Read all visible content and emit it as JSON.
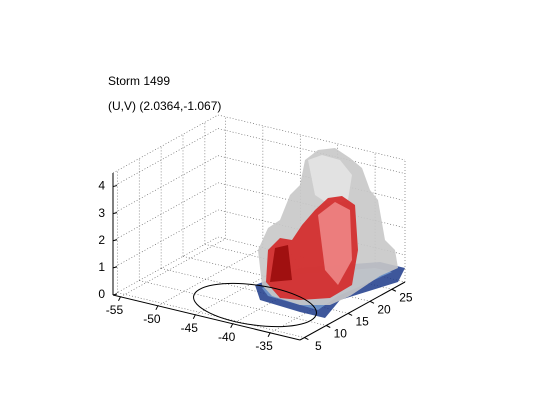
{
  "chart_data": {
    "type": "isosurface3d",
    "title": "Storm 1499",
    "subtitle": "(U,V) (2.0364,-1.067)",
    "xlim": [
      -56,
      -31
    ],
    "xticks": [
      -55,
      -50,
      -45,
      -40,
      -35
    ],
    "ylim": [
      4,
      28
    ],
    "yticks": [
      5,
      10,
      15,
      20,
      25
    ],
    "zlim": [
      0,
      4.5
    ],
    "zticks": [
      0,
      1,
      2,
      3,
      4
    ],
    "grid": true
  }
}
